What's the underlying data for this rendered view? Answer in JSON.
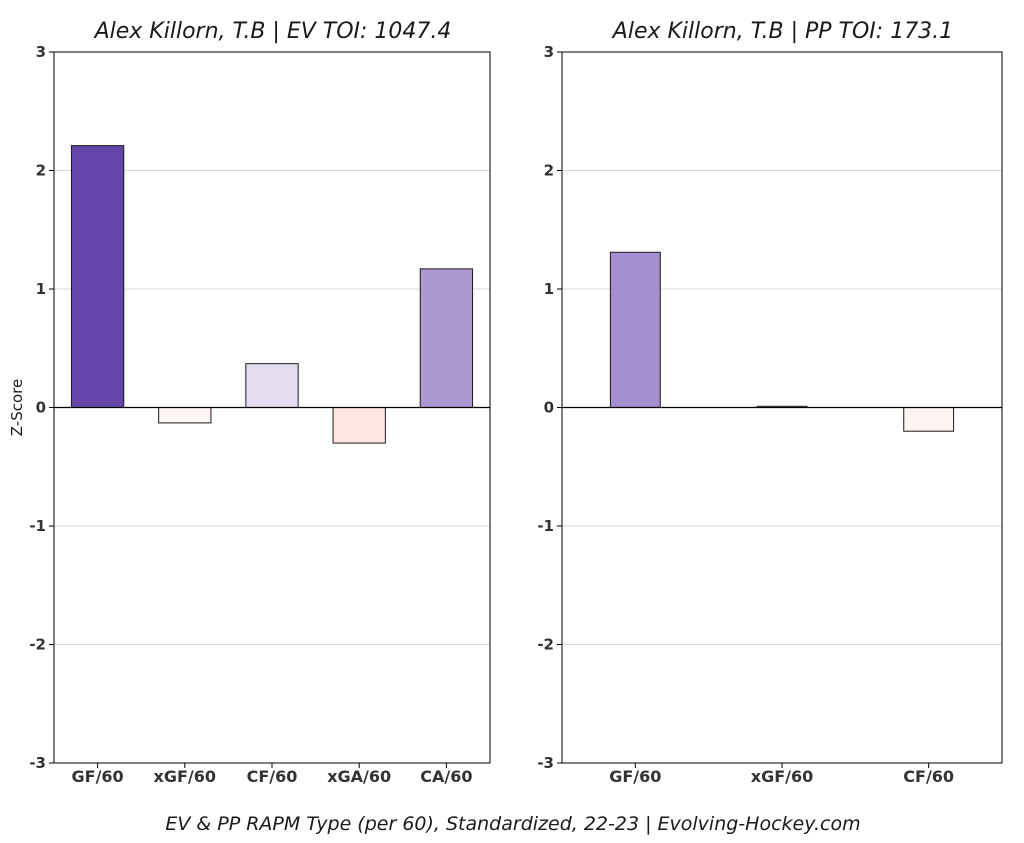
{
  "chart_data": [
    {
      "type": "bar",
      "title": "Alex Killorn, T.B  |  EV TOI: 1047.4",
      "ylabel": "Z-Score",
      "xlabel": "",
      "ylim": [
        -3,
        3
      ],
      "yticks": [
        3,
        2,
        1,
        0,
        -1,
        -2,
        -3
      ],
      "grid": true,
      "categories": [
        "GF/60",
        "xGF/60",
        "CF/60",
        "xGA/60",
        "CA/60"
      ],
      "values": [
        2.21,
        -0.13,
        0.37,
        -0.3,
        1.17
      ],
      "colors": [
        "#6645aa",
        "#fdf5f2",
        "#e4ddf0",
        "#fde7df",
        "#ab98d3"
      ]
    },
    {
      "type": "bar",
      "title": "Alex Killorn, T.B  |  PP TOI: 173.1",
      "ylabel": "",
      "xlabel": "",
      "ylim": [
        -3,
        3
      ],
      "yticks": [
        3,
        2,
        1,
        0,
        -1,
        -2,
        -3
      ],
      "grid": true,
      "categories": [
        "GF/60",
        "xGF/60",
        "CF/60"
      ],
      "values": [
        1.31,
        0.01,
        -0.2
      ],
      "colors": [
        "#a48ecf",
        "#f4f1f7",
        "#fdf3f1"
      ]
    }
  ],
  "footer": "EV & PP RAPM Type (per 60), Standardized, 22-23    |    Evolving-Hockey.com"
}
